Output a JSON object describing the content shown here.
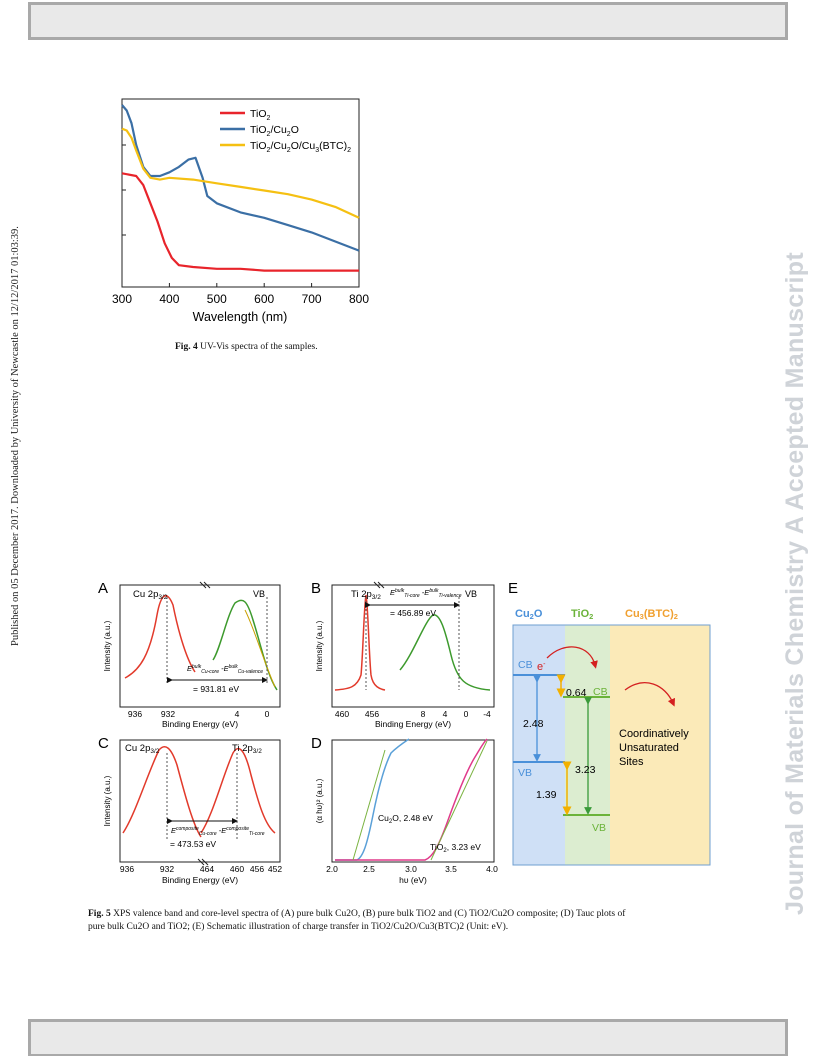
{
  "side_text": {
    "published": "Published on 05 December 2017. Downloaded by University of Newcastle on 12/12/2017 01:03:39.",
    "journal": "Journal of Materials Chemistry A Accepted Manuscript"
  },
  "fig4": {
    "caption_label": "Fig. 4",
    "caption_text": "UV-Vis spectra of the samples.",
    "chart_data": {
      "type": "line",
      "xlabel": "Wavelength (nm)",
      "ylabel": "",
      "xlim": [
        300,
        800
      ],
      "x_ticks": [
        "300",
        "400",
        "500",
        "600",
        "700",
        "800"
      ],
      "legend_position": "top-right",
      "grid": false,
      "series": [
        {
          "name": "TiO2",
          "color": "#e8242b",
          "x": [
            300,
            330,
            345,
            360,
            375,
            390,
            405,
            420,
            450,
            500,
            550,
            600,
            650,
            700,
            750,
            800
          ],
          "y": [
            0.625,
            0.61,
            0.56,
            0.46,
            0.36,
            0.24,
            0.16,
            0.12,
            0.11,
            0.1,
            0.1,
            0.09,
            0.09,
            0.09,
            0.09,
            0.09
          ]
        },
        {
          "name": "TiO2/Cu2O",
          "color": "#3b6fa5",
          "x": [
            300,
            310,
            320,
            330,
            345,
            360,
            380,
            400,
            420,
            440,
            455,
            470,
            480,
            500,
            550,
            600,
            650,
            700,
            750,
            800
          ],
          "y": [
            1.0,
            0.97,
            0.9,
            0.78,
            0.66,
            0.61,
            0.61,
            0.63,
            0.66,
            0.7,
            0.71,
            0.6,
            0.5,
            0.46,
            0.41,
            0.38,
            0.34,
            0.3,
            0.25,
            0.2
          ]
        },
        {
          "name": "TiO2/Cu2O/Cu3(BTC)2",
          "color": "#f5c012",
          "x": [
            300,
            310,
            320,
            330,
            345,
            360,
            380,
            400,
            450,
            500,
            550,
            600,
            650,
            700,
            750,
            800
          ],
          "y": [
            0.87,
            0.86,
            0.82,
            0.75,
            0.65,
            0.6,
            0.59,
            0.6,
            0.59,
            0.57,
            0.55,
            0.53,
            0.51,
            0.48,
            0.44,
            0.38
          ]
        }
      ]
    }
  },
  "fig5": {
    "caption_label": "Fig. 5",
    "caption_text_1": "XPS valence band and core-level spectra of (A) pure bulk Cu2O, (B) pure bulk TiO2 and (C) TiO2/Cu2O composite; (D) Tauc plots of",
    "caption_text_2": "pure bulk Cu2O and TiO2; (E) Schematic illustration of charge transfer in TiO2/Cu2O/Cu3(BTC)2 (Unit: eV).",
    "panelA": {
      "label": "A",
      "peak_label": "Cu 2p3/2",
      "vb_label": "VB",
      "energy_text": "= 931.81 eV",
      "xlabel": "Binding Energy (eV)",
      "ylabel": "Intensity (a.u.)",
      "x_ticks": [
        "936",
        "932",
        "4",
        "0"
      ]
    },
    "panelB": {
      "label": "B",
      "peak_label": "Ti 2p3/2",
      "vb_label": "VB",
      "energy_text": "= 456.89 eV",
      "xlabel": "Binding Energy (eV)",
      "ylabel": "Intensity (a.u.)",
      "x_ticks": [
        "460",
        "456",
        "8",
        "4",
        "0",
        "-4"
      ]
    },
    "panelC": {
      "label": "C",
      "peak_label_1": "Cu 2p3/2",
      "peak_label_2": "Ti 2p3/2",
      "energy_text": "= 473.53 eV",
      "xlabel": "Binding Energy (eV)",
      "ylabel": "Intensity (a.u.)",
      "x_ticks": [
        "936",
        "932",
        "464",
        "460",
        "456",
        "452"
      ]
    },
    "panelD": {
      "label": "D",
      "curve_label_1": "Cu2O, 2.48 eV",
      "curve_label_2": "TiO2, 3.23 eV",
      "xlabel": "hυ (eV)",
      "ylabel": "(α hυ)² (a.u.)",
      "x_ticks": [
        "2.0",
        "2.5",
        "3.0",
        "3.5",
        "4.0"
      ]
    },
    "panelE": {
      "label": "E",
      "col_cu2o": "Cu2O",
      "col_tio2": "TiO2",
      "col_btc": "Cu3(BTC)2",
      "cb_left": "CB",
      "vb_left": "VB",
      "cb_right": "CB",
      "vb_right": "VB",
      "electron": "e",
      "val_064": "0.64",
      "val_248": "2.48",
      "val_323": "3.23",
      "val_139": "1.39",
      "sites_1": "Coordinatively",
      "sites_2": "Unsaturated",
      "sites_3": "Sites",
      "colors": {
        "cu2o": "#4a90d9",
        "tio2": "#6bb33a",
        "btc": "#f0a030",
        "arrow": "#f2b000",
        "red": "#d42020"
      }
    }
  }
}
